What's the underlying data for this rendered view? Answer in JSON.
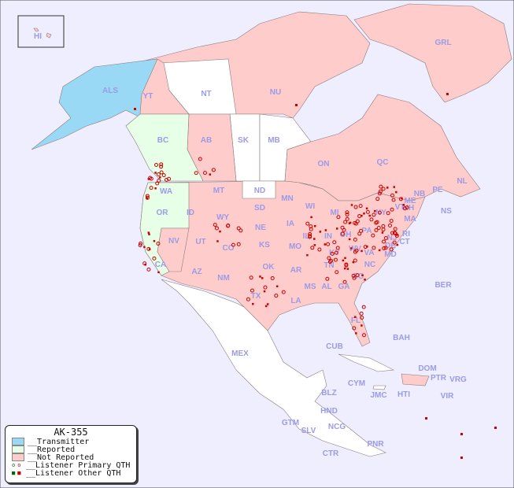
{
  "title": "AK-355",
  "colors": {
    "background": "#eeeeff",
    "transmitter": "#99d9f5",
    "reported": "#e6ffe6",
    "not_reported": "#ffcccc",
    "unlisted": "#ffffff",
    "listener_primary": "#cc0000",
    "listener_primary_alt": "#006600",
    "listener_other": "#cc0000",
    "label": "#9b9be6"
  },
  "legend": {
    "transmitter": "__Transmitter",
    "reported": "__Reported",
    "not_reported": "__Not Reported",
    "listener_primary": "__Listener Primary QTH",
    "listener_other": "__Listener Other QTH"
  },
  "labels": [
    "HI",
    "ALS",
    "YT",
    "NT",
    "NU",
    "GRL",
    "BC",
    "AB",
    "SK",
    "MB",
    "ON",
    "QC",
    "NL",
    "NS",
    "NB",
    "PE",
    "WA",
    "OR",
    "CA",
    "NV",
    "ID",
    "MT",
    "WY",
    "UT",
    "AZ",
    "NM",
    "CO",
    "ND",
    "SD",
    "NE",
    "KS",
    "OK",
    "TX",
    "MN",
    "IA",
    "MO",
    "AR",
    "LA",
    "WI",
    "IL",
    "MS",
    "MI",
    "IN",
    "KY",
    "TN",
    "AL",
    "GA",
    "FL",
    "OH",
    "WV",
    "VA",
    "NC",
    "SC",
    "PA",
    "NY",
    "MD",
    "DE",
    "NJ",
    "CT",
    "RI",
    "MA",
    "VT",
    "NH",
    "ME",
    "BER",
    "BAH",
    "CUB",
    "MEX",
    "DOM",
    "PTR",
    "VRG",
    "VIR",
    "CYM",
    "JMC",
    "HTI",
    "BLZ",
    "GTM",
    "HND",
    "SLV",
    "NCG",
    "CTR",
    "PNR"
  ]
}
